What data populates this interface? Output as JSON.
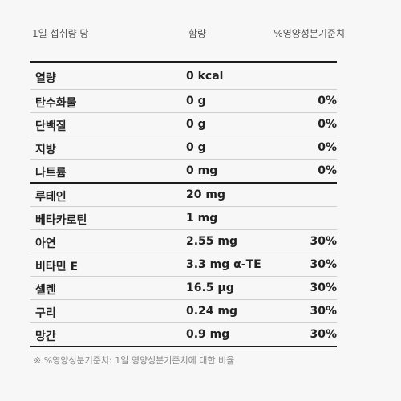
{
  "header": {
    "serving": "1일 섭취량 당",
    "amount": "함량",
    "daily_value": "%영양성분기준치"
  },
  "rows": [
    {
      "name": "열량",
      "amount": "0 kcal",
      "dv": ""
    },
    {
      "name": "탄수화물",
      "amount": "0 g",
      "dv": "0%"
    },
    {
      "name": "단백질",
      "amount": "0 g",
      "dv": "0%"
    },
    {
      "name": "지방",
      "amount": "0 g",
      "dv": "0%"
    },
    {
      "name": "나트륨",
      "amount": "0 mg",
      "dv": "0%"
    },
    {
      "name": "루테인",
      "amount": "20 mg",
      "dv": ""
    },
    {
      "name": "베타카로틴",
      "amount": "1 mg",
      "dv": ""
    },
    {
      "name": "아연",
      "amount": "2.55 mg",
      "dv": "30%"
    },
    {
      "name": "비타민 E",
      "amount": "3.3 mg α-TE",
      "dv": "30%"
    },
    {
      "name": "셀렌",
      "amount": "16.5 μg",
      "dv": "30%"
    },
    {
      "name": "구리",
      "amount": "0.24 mg",
      "dv": "30%"
    },
    {
      "name": "망간",
      "amount": "0.9 mg",
      "dv": "30%"
    }
  ],
  "footnote": "※ %영양성분기준치: 1일 영양성분기준치에 대한 비율"
}
